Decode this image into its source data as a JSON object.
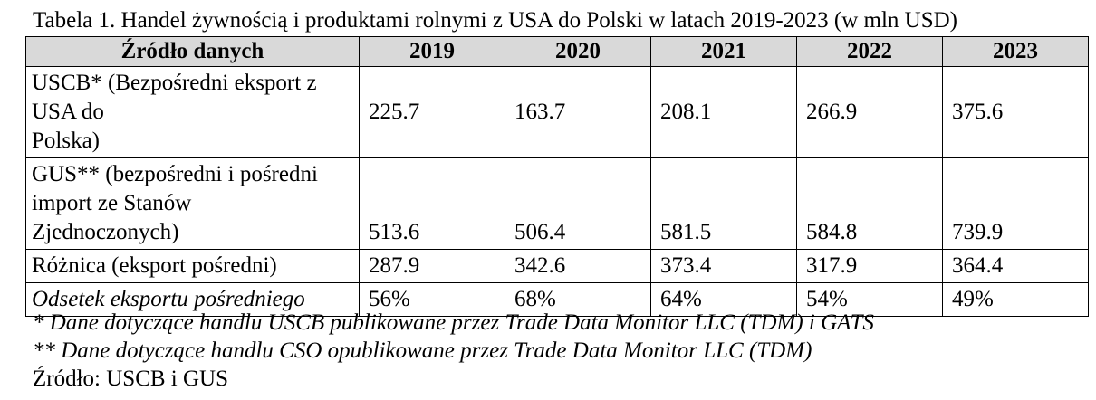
{
  "caption": "Tabela 1. Handel żywnością i produktami rolnymi z USA do Polski w latach 2019-2023 (w mln USD)",
  "table": {
    "header": [
      "Źródło danych",
      "2019",
      "2020",
      "2021",
      "2022",
      "2023"
    ],
    "rows": [
      {
        "label_lines": [
          "USCB* (Bezpośredni eksport z",
          "USA do",
          "Polska)"
        ],
        "values": [
          "225.7",
          "163.7",
          "208.1",
          "266.9",
          "375.6"
        ]
      },
      {
        "label_lines": [
          "GUS** (bezpośredni i pośredni",
          "import ze Stanów",
          "Zjednoczonych)"
        ],
        "values": [
          "513.6",
          "506.4",
          "581.5",
          "584.8",
          "739.9"
        ]
      },
      {
        "label": "Różnica (eksport pośredni)",
        "values": [
          "287.9",
          "342.6",
          "373.4",
          "317.9",
          "364.4"
        ]
      },
      {
        "label": "Odsetek eksportu pośredniego",
        "values": [
          "56%",
          "68%",
          "64%",
          "54%",
          "49%"
        ]
      }
    ]
  },
  "notes": {
    "note1": "* Dane dotyczące handlu USCB publikowane przez Trade Data Monitor LLC (TDM) i GATS",
    "note2": "** Dane dotyczące handlu CSO opublikowane przez Trade Data Monitor LLC (TDM)",
    "source": "Źródło: USCB i GUS"
  }
}
